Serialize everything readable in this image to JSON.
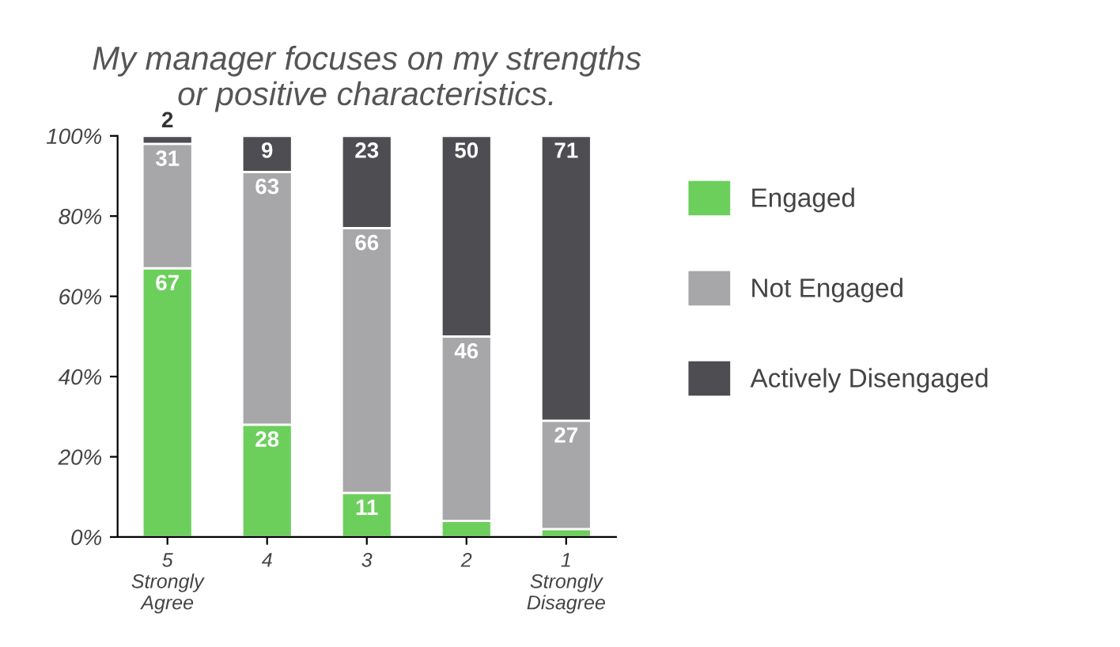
{
  "chart_data": {
    "type": "bar",
    "stacked": true,
    "title": "My manager focuses on my strengths\nor positive characteristics.",
    "categories": [
      "5\nStrongly\nAgree",
      "4",
      "3",
      "2",
      "1\nStrongly\nDisagree"
    ],
    "series": [
      {
        "name": "Engaged",
        "color": "#6ccf5c",
        "values": [
          67,
          28,
          11,
          4,
          2
        ],
        "value_labels": [
          "67",
          "28",
          "11",
          null,
          null
        ]
      },
      {
        "name": "Not Engaged",
        "color": "#a7a7a9",
        "values": [
          31,
          63,
          66,
          46,
          27
        ],
        "value_labels": [
          "31",
          "63",
          "66",
          "46",
          "27"
        ]
      },
      {
        "name": "Actively Disengaged",
        "color": "#4d4d52",
        "values": [
          2,
          9,
          23,
          50,
          71
        ],
        "value_labels": [
          "2",
          "9",
          "23",
          "50",
          "71"
        ]
      }
    ],
    "ylim": [
      0,
      100
    ],
    "yticks": [
      {
        "value": 0,
        "label": "0%"
      },
      {
        "value": 20,
        "label": "20%"
      },
      {
        "value": 40,
        "label": "40%"
      },
      {
        "value": 60,
        "label": "60%"
      },
      {
        "value": 80,
        "label": "80%"
      },
      {
        "value": 100,
        "label": "100%"
      }
    ],
    "grid": false,
    "legend": "right"
  }
}
